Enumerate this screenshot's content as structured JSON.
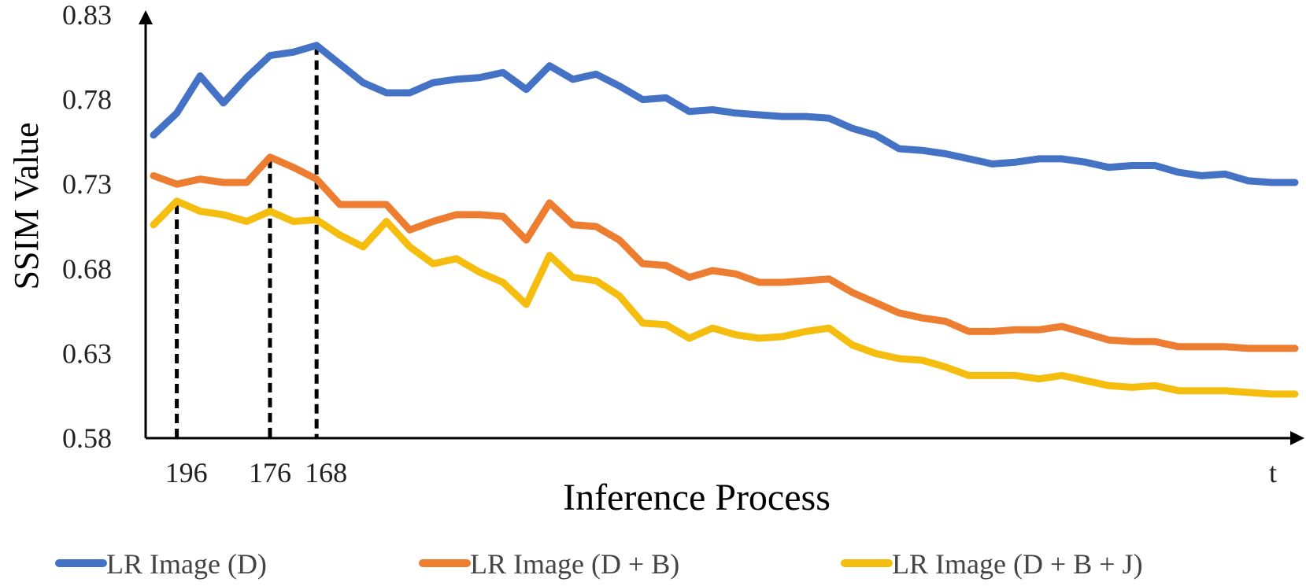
{
  "chart_data": {
    "type": "line",
    "title": "",
    "xlabel": "Inference Process",
    "ylabel": "SSIM Value",
    "x_end_label": "t",
    "ylim": [
      0.58,
      0.83
    ],
    "yticks": [
      "0.58",
      "0.63",
      "0.68",
      "0.73",
      "0.78",
      "0.83"
    ],
    "grid": false,
    "legend_position": "bottom",
    "markers": [
      {
        "label": "196",
        "index": 1,
        "value": 0.718
      },
      {
        "label": "176",
        "index": 5,
        "value": 0.745
      },
      {
        "label": "168",
        "index": 7,
        "value": 0.812
      }
    ],
    "series": [
      {
        "name": "LR Image (D)",
        "color": "#4472C4",
        "values": [
          0.759,
          0.772,
          0.794,
          0.778,
          0.793,
          0.806,
          0.808,
          0.812,
          0.801,
          0.79,
          0.784,
          0.784,
          0.79,
          0.792,
          0.793,
          0.796,
          0.786,
          0.8,
          0.792,
          0.795,
          0.788,
          0.78,
          0.781,
          0.773,
          0.774,
          0.772,
          0.771,
          0.77,
          0.77,
          0.769,
          0.763,
          0.759,
          0.751,
          0.75,
          0.748,
          0.745,
          0.742,
          0.743,
          0.745,
          0.745,
          0.743,
          0.74,
          0.741,
          0.741,
          0.737,
          0.735,
          0.736,
          0.732,
          0.731,
          0.731
        ]
      },
      {
        "name": "LR Image (D + B)",
        "color": "#ED7D31",
        "values": [
          0.735,
          0.73,
          0.733,
          0.731,
          0.731,
          0.746,
          0.74,
          0.733,
          0.718,
          0.718,
          0.718,
          0.703,
          0.708,
          0.712,
          0.712,
          0.711,
          0.697,
          0.719,
          0.706,
          0.705,
          0.697,
          0.683,
          0.682,
          0.675,
          0.679,
          0.677,
          0.672,
          0.672,
          0.673,
          0.674,
          0.666,
          0.66,
          0.654,
          0.651,
          0.649,
          0.643,
          0.643,
          0.644,
          0.644,
          0.646,
          0.642,
          0.638,
          0.637,
          0.637,
          0.634,
          0.634,
          0.634,
          0.633,
          0.633,
          0.633
        ]
      },
      {
        "name": "LR Image (D + B + J)",
        "color": "#F5BD0E",
        "values": [
          0.706,
          0.72,
          0.714,
          0.712,
          0.708,
          0.714,
          0.708,
          0.709,
          0.7,
          0.693,
          0.708,
          0.693,
          0.683,
          0.686,
          0.678,
          0.672,
          0.659,
          0.688,
          0.675,
          0.673,
          0.664,
          0.648,
          0.647,
          0.639,
          0.645,
          0.641,
          0.639,
          0.64,
          0.643,
          0.645,
          0.635,
          0.63,
          0.627,
          0.626,
          0.622,
          0.617,
          0.617,
          0.617,
          0.615,
          0.617,
          0.614,
          0.611,
          0.61,
          0.611,
          0.608,
          0.608,
          0.608,
          0.607,
          0.606,
          0.606
        ]
      }
    ]
  }
}
